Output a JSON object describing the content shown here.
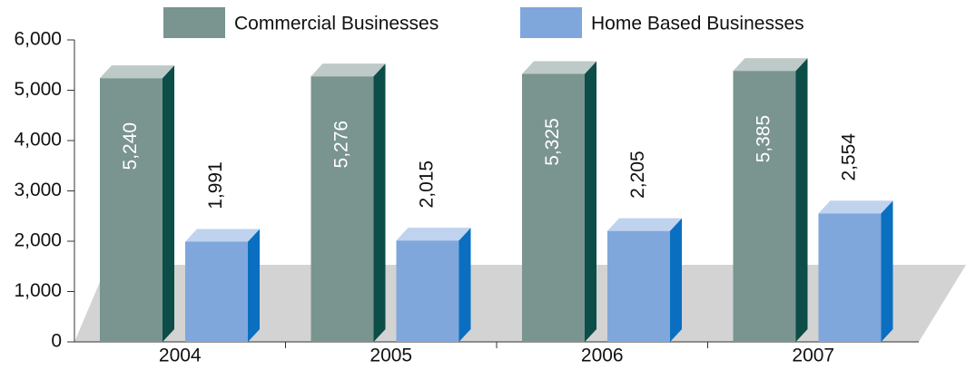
{
  "chart_data": {
    "type": "bar3d",
    "categories": [
      "2004",
      "2005",
      "2006",
      "2007"
    ],
    "series": [
      {
        "name": "Commercial Businesses",
        "color": "#7a9490",
        "values": [
          5240,
          5276,
          5325,
          5385
        ],
        "value_labels": [
          "5,240",
          "5,276",
          "5,325",
          "5,385"
        ]
      },
      {
        "name": "Home Based Businesses",
        "color": "#7fa7dc",
        "values": [
          1991,
          2015,
          2205,
          2554
        ],
        "value_labels": [
          "1,991",
          "2,015",
          "2,205",
          "2,554"
        ]
      }
    ],
    "ylim": [
      0,
      6000
    ],
    "yticks": [
      0,
      {
        "value": 1000,
        "label": "1,000"
      },
      {
        "value": 2000,
        "label": "2,000"
      },
      {
        "value": 3000,
        "label": "3,000"
      },
      {
        "value": 4000,
        "label": "4,000"
      },
      {
        "value": 5000,
        "label": "5,000"
      },
      {
        "value": 6000,
        "label": "6,000"
      }
    ],
    "legend": "top"
  }
}
